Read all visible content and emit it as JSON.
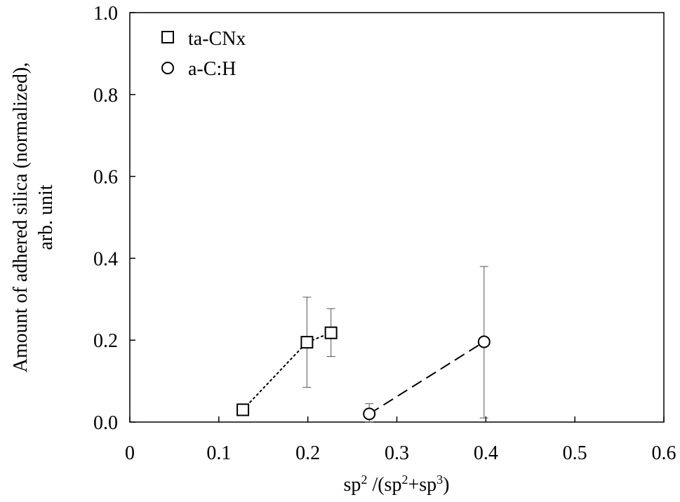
{
  "chart_data": {
    "type": "scatter",
    "xlabel": {
      "base1": "sp",
      "sup1": "2",
      "mid": " /(sp",
      "sup2": "2",
      "mid2": "+sp",
      "sup3": "3",
      "end": ")"
    },
    "ylabel": {
      "line1": "Amount of adhered silica (normalized),",
      "line2": "arb. unit"
    },
    "xlim": [
      0,
      0.6
    ],
    "ylim": [
      0,
      1.0
    ],
    "xticks": [
      "0",
      "0.1",
      "0.2",
      "0.3",
      "0.4",
      "0.5",
      "0.6"
    ],
    "yticks": [
      "0.0",
      "0.2",
      "0.4",
      "0.6",
      "0.8",
      "1.0"
    ],
    "legend_position": "top-left",
    "grid": false,
    "series": [
      {
        "name": "ta-CNx",
        "marker": "square",
        "line_style": "dotted",
        "points": [
          {
            "x": 0.127,
            "y": 0.03,
            "err_low": null,
            "err_high": null
          },
          {
            "x": 0.199,
            "y": 0.195,
            "err_low": 0.085,
            "err_high": 0.305
          },
          {
            "x": 0.226,
            "y": 0.218,
            "err_low": 0.16,
            "err_high": 0.277
          }
        ]
      },
      {
        "name": "a-C:H",
        "marker": "circle",
        "line_style": "dashed",
        "points": [
          {
            "x": 0.269,
            "y": 0.02,
            "err_low": 0.0,
            "err_high": 0.045
          },
          {
            "x": 0.398,
            "y": 0.196,
            "err_low": 0.01,
            "err_high": 0.38
          }
        ]
      }
    ]
  }
}
